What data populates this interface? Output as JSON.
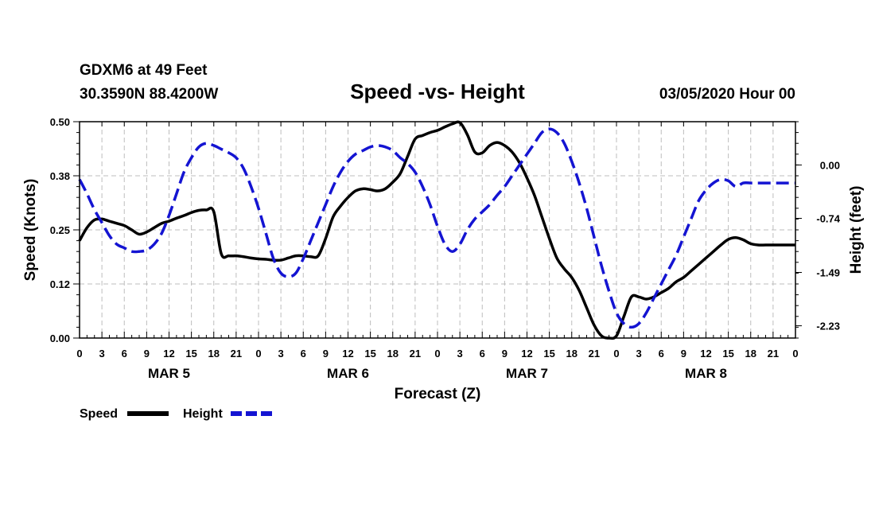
{
  "header": {
    "station": "GDXM6 at 49 Feet",
    "location": "30.3590N 88.4200W",
    "title": "Speed -vs- Height",
    "date": "03/05/2020 Hour 00"
  },
  "chart_data": {
    "type": "line",
    "title": "Speed -vs- Height",
    "xlabel": "Forecast (Z)",
    "ylabel_left": "Speed (Knots)",
    "ylabel_right": "Height (feet)",
    "x_range_hours": [
      0,
      96
    ],
    "ylim_left": [
      0,
      0.5
    ],
    "ylim_right": [
      -2.4,
      0.6
    ],
    "left_ticks": [
      "0.00",
      "0.12",
      "0.25",
      "0.38",
      "0.50"
    ],
    "left_tick_values": [
      0,
      0.125,
      0.25,
      0.375,
      0.5
    ],
    "right_ticks": [
      "-2.23",
      "-1.49",
      "-0.74",
      "0.00"
    ],
    "right_tick_values": [
      -2.23,
      -1.49,
      -0.74,
      0.0
    ],
    "x_tick_hours": [
      0,
      3,
      6,
      9,
      12,
      15,
      18,
      21,
      24,
      27,
      30,
      33,
      36,
      39,
      42,
      45,
      48,
      51,
      54,
      57,
      60,
      63,
      66,
      69,
      72,
      75,
      78,
      81,
      84,
      87,
      90,
      93,
      96
    ],
    "x_tick_labels": [
      "0",
      "3",
      "6",
      "9",
      "12",
      "15",
      "18",
      "21",
      "0",
      "3",
      "6",
      "9",
      "12",
      "15",
      "18",
      "21",
      "0",
      "3",
      "6",
      "9",
      "12",
      "15",
      "18",
      "21",
      "0",
      "3",
      "6",
      "9",
      "12",
      "15",
      "18",
      "21",
      "0"
    ],
    "day_labels": [
      {
        "label": "MAR 5",
        "hour": 12
      },
      {
        "label": "MAR 6",
        "hour": 36
      },
      {
        "label": "MAR 7",
        "hour": 60
      },
      {
        "label": "MAR 8",
        "hour": 84
      }
    ],
    "grid": true,
    "legend_position": "bottom-left",
    "series": [
      {
        "name": "Speed",
        "axis": "left",
        "color": "#000000",
        "style": "solid",
        "x": [
          0,
          1,
          2,
          3,
          4,
          5,
          6,
          7,
          8,
          9,
          10,
          11,
          12,
          13,
          14,
          15,
          16,
          17,
          18,
          19,
          20,
          21,
          22,
          23,
          24,
          25,
          26,
          27,
          28,
          29,
          30,
          31,
          32,
          33,
          34,
          35,
          36,
          37,
          38,
          39,
          40,
          41,
          42,
          43,
          44,
          45,
          46,
          47,
          48,
          49,
          50,
          51,
          52,
          53,
          54,
          55,
          56,
          57,
          58,
          59,
          60,
          61,
          62,
          63,
          64,
          65,
          66,
          67,
          68,
          69,
          70,
          71,
          72,
          73,
          74,
          75,
          76,
          77,
          78,
          79,
          80,
          81,
          82,
          83,
          84,
          85,
          86,
          87,
          88,
          89,
          90,
          91,
          92,
          93,
          94,
          95,
          96
        ],
        "values": [
          0.225,
          0.255,
          0.273,
          0.275,
          0.27,
          0.265,
          0.26,
          0.25,
          0.24,
          0.245,
          0.255,
          0.265,
          0.27,
          0.277,
          0.283,
          0.29,
          0.295,
          0.296,
          0.292,
          0.195,
          0.19,
          0.19,
          0.188,
          0.185,
          0.183,
          0.182,
          0.18,
          0.18,
          0.185,
          0.19,
          0.19,
          0.188,
          0.19,
          0.23,
          0.28,
          0.305,
          0.325,
          0.34,
          0.345,
          0.343,
          0.34,
          0.345,
          0.36,
          0.38,
          0.42,
          0.46,
          0.468,
          0.475,
          0.48,
          0.488,
          0.495,
          0.498,
          0.47,
          0.43,
          0.428,
          0.445,
          0.452,
          0.445,
          0.43,
          0.405,
          0.37,
          0.33,
          0.28,
          0.23,
          0.185,
          0.16,
          0.14,
          0.11,
          0.07,
          0.03,
          0.005,
          0.0,
          0.005,
          0.05,
          0.095,
          0.095,
          0.09,
          0.095,
          0.105,
          0.115,
          0.13,
          0.14,
          0.155,
          0.17,
          0.185,
          0.2,
          0.215,
          0.228,
          0.232,
          0.227,
          0.218,
          0.215,
          0.215,
          0.215,
          0.215,
          0.215,
          0.215
        ]
      },
      {
        "name": "Height",
        "axis": "right",
        "color": "#1414d2",
        "style": "dashed",
        "x": [
          0,
          1,
          2,
          3,
          4,
          5,
          6,
          7,
          8,
          9,
          10,
          11,
          12,
          13,
          14,
          15,
          16,
          17,
          18,
          19,
          20,
          21,
          22,
          23,
          24,
          25,
          26,
          27,
          28,
          29,
          30,
          31,
          32,
          33,
          34,
          35,
          36,
          37,
          38,
          39,
          40,
          41,
          42,
          43,
          44,
          45,
          46,
          47,
          48,
          49,
          50,
          51,
          52,
          53,
          54,
          55,
          56,
          57,
          58,
          59,
          60,
          61,
          62,
          63,
          64,
          65,
          66,
          67,
          68,
          69,
          70,
          71,
          72,
          73,
          74,
          75,
          76,
          77,
          78,
          79,
          80,
          81,
          82,
          83,
          84,
          85,
          86,
          87,
          88,
          89,
          90,
          91,
          92,
          93,
          94,
          95,
          96
        ],
        "values": [
          -0.2,
          -0.4,
          -0.62,
          -0.8,
          -0.98,
          -1.1,
          -1.15,
          -1.2,
          -1.2,
          -1.18,
          -1.1,
          -0.95,
          -0.7,
          -0.4,
          -0.1,
          0.1,
          0.25,
          0.3,
          0.27,
          0.22,
          0.17,
          0.1,
          -0.05,
          -0.3,
          -0.6,
          -0.95,
          -1.3,
          -1.5,
          -1.55,
          -1.5,
          -1.3,
          -1.05,
          -0.8,
          -0.55,
          -0.3,
          -0.1,
          0.05,
          0.15,
          0.2,
          0.25,
          0.27,
          0.25,
          0.2,
          0.1,
          0.02,
          -0.1,
          -0.3,
          -0.55,
          -0.85,
          -1.1,
          -1.2,
          -1.1,
          -0.9,
          -0.75,
          -0.65,
          -0.55,
          -0.42,
          -0.3,
          -0.15,
          0.0,
          0.15,
          0.3,
          0.45,
          0.5,
          0.45,
          0.3,
          0.05,
          -0.25,
          -0.6,
          -1.0,
          -1.4,
          -1.75,
          -2.05,
          -2.2,
          -2.25,
          -2.2,
          -2.05,
          -1.85,
          -1.65,
          -1.45,
          -1.25,
          -1.0,
          -0.75,
          -0.5,
          -0.35,
          -0.25,
          -0.2,
          -0.22,
          -0.3,
          -0.25,
          -0.25,
          -0.25,
          -0.25,
          -0.25,
          -0.25,
          -0.25,
          -0.25
        ]
      }
    ],
    "legend": [
      {
        "label": "Speed",
        "color": "#000000",
        "style": "solid"
      },
      {
        "label": "Height",
        "color": "#1414d2",
        "style": "dashed"
      }
    ]
  }
}
